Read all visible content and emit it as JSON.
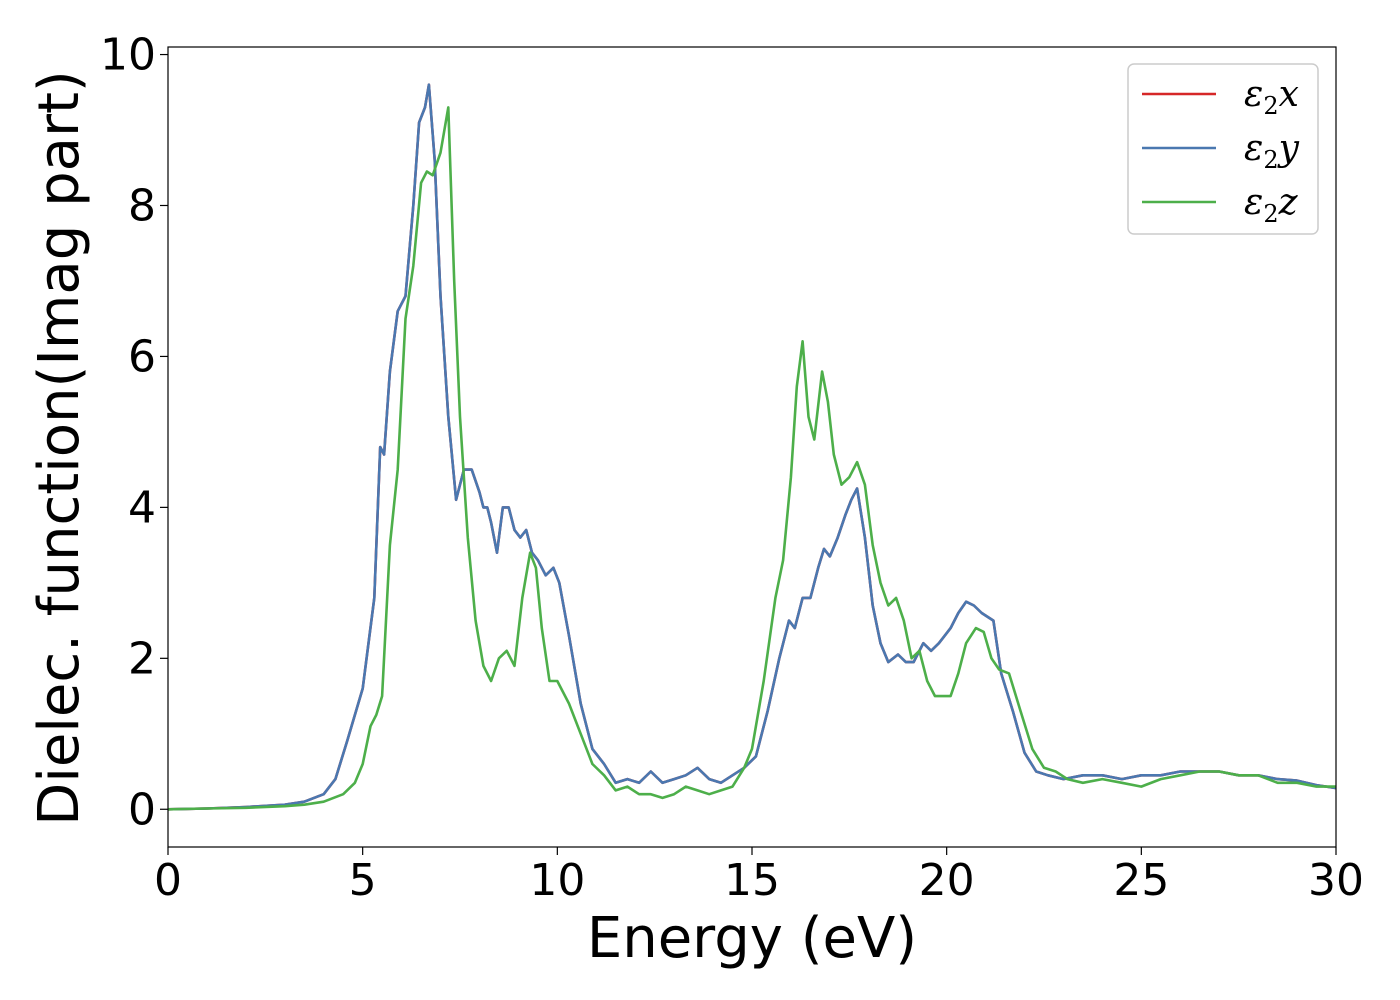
{
  "chart_data": {
    "type": "line",
    "xlabel": "Energy (eV)",
    "ylabel": "Dielec. function(Imag part)",
    "xlim": [
      0,
      30
    ],
    "ylim": [
      -0.5,
      10.1
    ],
    "xticks": [
      0,
      5,
      10,
      15,
      20,
      25,
      30
    ],
    "yticks": [
      0,
      2,
      4,
      6,
      8,
      10
    ],
    "grid": false,
    "legend_position": "top-right",
    "series": [
      {
        "name": "ε2x",
        "legend_main": "ε",
        "legend_sub": "2",
        "legend_suffix": "x",
        "color": "#d62728",
        "x": [
          0,
          1,
          2,
          3,
          3.5,
          4.0,
          4.3,
          4.6,
          5.0,
          5.3,
          5.45,
          5.55,
          5.7,
          5.9,
          6.1,
          6.3,
          6.45,
          6.6,
          6.7,
          6.85,
          7.0,
          7.2,
          7.4,
          7.6,
          7.8,
          8.0,
          8.1,
          8.2,
          8.3,
          8.45,
          8.6,
          8.75,
          8.9,
          9.05,
          9.2,
          9.35,
          9.5,
          9.7,
          9.9,
          10.05,
          10.3,
          10.6,
          10.9,
          11.2,
          11.5,
          11.8,
          12.1,
          12.4,
          12.7,
          13.0,
          13.3,
          13.6,
          13.9,
          14.2,
          14.5,
          14.8,
          15.1,
          15.4,
          15.7,
          15.95,
          16.1,
          16.3,
          16.5,
          16.7,
          16.85,
          17.0,
          17.2,
          17.4,
          17.55,
          17.7,
          17.9,
          18.1,
          18.3,
          18.5,
          18.75,
          18.95,
          19.15,
          19.4,
          19.6,
          19.8,
          20.1,
          20.3,
          20.5,
          20.7,
          20.9,
          21.2,
          21.4,
          21.7,
          22.0,
          22.3,
          22.6,
          23.0,
          23.5,
          24.0,
          24.5,
          25.0,
          25.5,
          26.0,
          26.5,
          27.0,
          27.5,
          28.0,
          28.5,
          29.0,
          29.5,
          30.0
        ],
        "y": [
          0,
          0.01,
          0.03,
          0.06,
          0.1,
          0.2,
          0.4,
          0.9,
          1.6,
          2.8,
          4.8,
          4.7,
          5.8,
          6.6,
          6.8,
          8.0,
          9.1,
          9.3,
          9.6,
          8.6,
          6.8,
          5.2,
          4.1,
          4.5,
          4.5,
          4.2,
          4.0,
          4.0,
          3.8,
          3.4,
          4.0,
          4.0,
          3.7,
          3.6,
          3.7,
          3.4,
          3.3,
          3.1,
          3.2,
          3.0,
          2.3,
          1.4,
          0.8,
          0.6,
          0.35,
          0.4,
          0.35,
          0.5,
          0.35,
          0.4,
          0.45,
          0.55,
          0.4,
          0.35,
          0.45,
          0.55,
          0.7,
          1.3,
          2.0,
          2.5,
          2.4,
          2.8,
          2.8,
          3.2,
          3.45,
          3.35,
          3.6,
          3.9,
          4.1,
          4.25,
          3.6,
          2.7,
          2.2,
          1.95,
          2.05,
          1.95,
          1.95,
          2.2,
          2.1,
          2.2,
          2.4,
          2.6,
          2.75,
          2.7,
          2.6,
          2.5,
          1.8,
          1.3,
          0.75,
          0.5,
          0.45,
          0.4,
          0.45,
          0.45,
          0.4,
          0.45,
          0.45,
          0.5,
          0.5,
          0.5,
          0.45,
          0.45,
          0.4,
          0.38,
          0.32,
          0.28
        ]
      },
      {
        "name": "ε2y",
        "legend_main": "ε",
        "legend_sub": "2",
        "legend_suffix": "y",
        "color": "#4a78b0",
        "x": [
          0,
          1,
          2,
          3,
          3.5,
          4.0,
          4.3,
          4.6,
          5.0,
          5.3,
          5.45,
          5.55,
          5.7,
          5.9,
          6.1,
          6.3,
          6.45,
          6.6,
          6.7,
          6.85,
          7.0,
          7.2,
          7.4,
          7.6,
          7.8,
          8.0,
          8.1,
          8.2,
          8.3,
          8.45,
          8.6,
          8.75,
          8.9,
          9.05,
          9.2,
          9.35,
          9.5,
          9.7,
          9.9,
          10.05,
          10.3,
          10.6,
          10.9,
          11.2,
          11.5,
          11.8,
          12.1,
          12.4,
          12.7,
          13.0,
          13.3,
          13.6,
          13.9,
          14.2,
          14.5,
          14.8,
          15.1,
          15.4,
          15.7,
          15.95,
          16.1,
          16.3,
          16.5,
          16.7,
          16.85,
          17.0,
          17.2,
          17.4,
          17.55,
          17.7,
          17.9,
          18.1,
          18.3,
          18.5,
          18.75,
          18.95,
          19.15,
          19.4,
          19.6,
          19.8,
          20.1,
          20.3,
          20.5,
          20.7,
          20.9,
          21.2,
          21.4,
          21.7,
          22.0,
          22.3,
          22.6,
          23.0,
          23.5,
          24.0,
          24.5,
          25.0,
          25.5,
          26.0,
          26.5,
          27.0,
          27.5,
          28.0,
          28.5,
          29.0,
          29.5,
          30.0
        ],
        "y": [
          0,
          0.01,
          0.03,
          0.06,
          0.1,
          0.2,
          0.4,
          0.9,
          1.6,
          2.8,
          4.8,
          4.7,
          5.8,
          6.6,
          6.8,
          8.0,
          9.1,
          9.3,
          9.6,
          8.6,
          6.8,
          5.2,
          4.1,
          4.5,
          4.5,
          4.2,
          4.0,
          4.0,
          3.8,
          3.4,
          4.0,
          4.0,
          3.7,
          3.6,
          3.7,
          3.4,
          3.3,
          3.1,
          3.2,
          3.0,
          2.3,
          1.4,
          0.8,
          0.6,
          0.35,
          0.4,
          0.35,
          0.5,
          0.35,
          0.4,
          0.45,
          0.55,
          0.4,
          0.35,
          0.45,
          0.55,
          0.7,
          1.3,
          2.0,
          2.5,
          2.4,
          2.8,
          2.8,
          3.2,
          3.45,
          3.35,
          3.6,
          3.9,
          4.1,
          4.25,
          3.6,
          2.7,
          2.2,
          1.95,
          2.05,
          1.95,
          1.95,
          2.2,
          2.1,
          2.2,
          2.4,
          2.6,
          2.75,
          2.7,
          2.6,
          2.5,
          1.8,
          1.3,
          0.75,
          0.5,
          0.45,
          0.4,
          0.45,
          0.45,
          0.4,
          0.45,
          0.45,
          0.5,
          0.5,
          0.5,
          0.45,
          0.45,
          0.4,
          0.38,
          0.32,
          0.28
        ]
      },
      {
        "name": "ε2z",
        "legend_main": "ε",
        "legend_sub": "2",
        "legend_suffix": "z",
        "color": "#4daf4a",
        "x": [
          0,
          1,
          2,
          3,
          3.5,
          4.0,
          4.5,
          4.8,
          5.0,
          5.2,
          5.35,
          5.5,
          5.7,
          5.9,
          6.1,
          6.3,
          6.5,
          6.65,
          6.8,
          7.0,
          7.2,
          7.35,
          7.5,
          7.7,
          7.9,
          8.1,
          8.3,
          8.5,
          8.7,
          8.9,
          9.1,
          9.3,
          9.45,
          9.6,
          9.8,
          10.0,
          10.3,
          10.6,
          10.9,
          11.2,
          11.5,
          11.8,
          12.1,
          12.4,
          12.7,
          13.0,
          13.3,
          13.6,
          13.9,
          14.2,
          14.5,
          14.8,
          15.0,
          15.3,
          15.6,
          15.8,
          16.0,
          16.15,
          16.3,
          16.45,
          16.6,
          16.8,
          16.95,
          17.1,
          17.3,
          17.5,
          17.7,
          17.9,
          18.1,
          18.3,
          18.5,
          18.7,
          18.9,
          19.1,
          19.3,
          19.5,
          19.7,
          19.9,
          20.1,
          20.3,
          20.5,
          20.75,
          20.95,
          21.15,
          21.35,
          21.6,
          21.9,
          22.2,
          22.5,
          22.8,
          23.1,
          23.5,
          24.0,
          24.5,
          25.0,
          25.5,
          26.0,
          26.5,
          27.0,
          27.5,
          28.0,
          28.5,
          29.0,
          29.5,
          30.0
        ],
        "y": [
          0,
          0.01,
          0.02,
          0.04,
          0.06,
          0.1,
          0.2,
          0.35,
          0.6,
          1.1,
          1.25,
          1.5,
          3.5,
          4.5,
          6.5,
          7.2,
          8.3,
          8.45,
          8.4,
          8.7,
          9.3,
          7.0,
          5.2,
          3.6,
          2.5,
          1.9,
          1.7,
          2.0,
          2.1,
          1.9,
          2.8,
          3.4,
          3.2,
          2.4,
          1.7,
          1.7,
          1.4,
          1.0,
          0.6,
          0.45,
          0.25,
          0.3,
          0.2,
          0.2,
          0.15,
          0.2,
          0.3,
          0.25,
          0.2,
          0.25,
          0.3,
          0.55,
          0.8,
          1.7,
          2.8,
          3.3,
          4.4,
          5.6,
          6.2,
          5.2,
          4.9,
          5.8,
          5.4,
          4.7,
          4.3,
          4.4,
          4.6,
          4.3,
          3.5,
          3.0,
          2.7,
          2.8,
          2.5,
          2.0,
          2.1,
          1.7,
          1.5,
          1.5,
          1.5,
          1.8,
          2.2,
          2.4,
          2.35,
          2.0,
          1.85,
          1.8,
          1.3,
          0.8,
          0.55,
          0.5,
          0.4,
          0.35,
          0.4,
          0.35,
          0.3,
          0.4,
          0.45,
          0.5,
          0.5,
          0.45,
          0.45,
          0.35,
          0.35,
          0.3,
          0.3
        ]
      }
    ]
  }
}
